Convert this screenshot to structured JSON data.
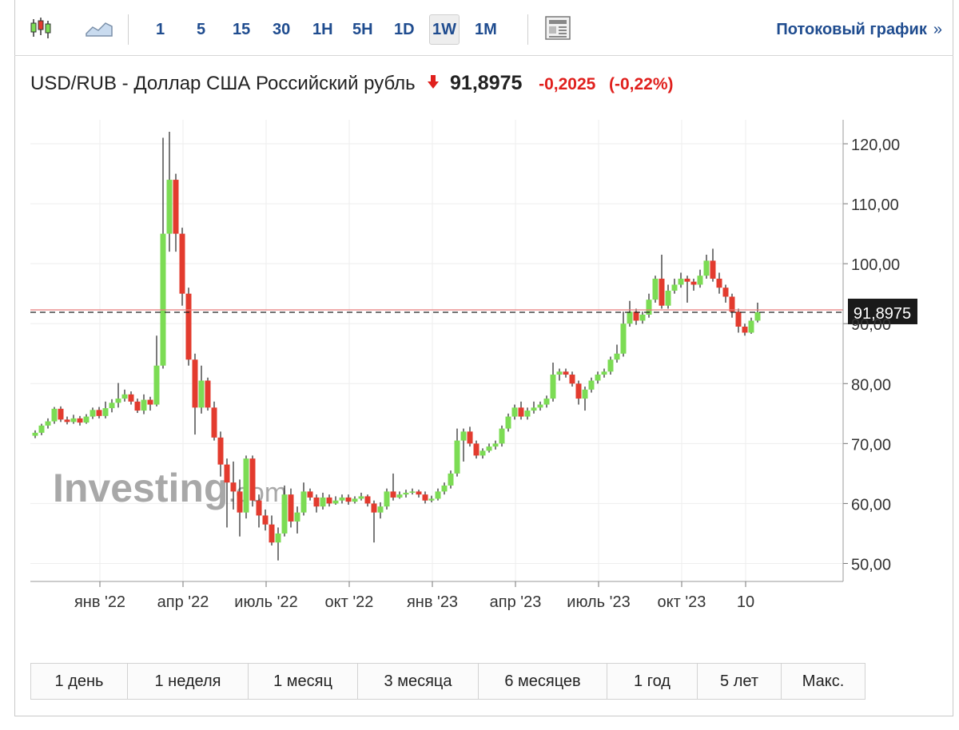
{
  "toolbar": {
    "intervals": [
      "1",
      "5",
      "15",
      "30",
      "1H",
      "5H",
      "1D",
      "1W",
      "1M"
    ],
    "active_interval": "1W",
    "stream_label": "Потоковый график",
    "stream_arrow": "»"
  },
  "header": {
    "title": "USD/RUB - Доллар США Российский рубль",
    "price": "91,8975",
    "change": "-0,2025",
    "change_pct": "(-0,22%)"
  },
  "colors": {
    "up": "#7cdc54",
    "down": "#e33b2e",
    "accent": "#1f4c8f",
    "negative_text": "#e0201d"
  },
  "watermark": {
    "text_main": "Investing",
    "text_suffix": ".com"
  },
  "periods": [
    "1 день",
    "1 неделя",
    "1 месяц",
    "3 месяца",
    "6 месяцев",
    "1 год",
    "5 лет",
    "Макс."
  ],
  "chart_data": {
    "type": "candlestick",
    "y_ticks": [
      "120,00",
      "110,00",
      "100,00",
      "90,00",
      "80,00",
      "70,00",
      "60,00",
      "50,00"
    ],
    "ylim": [
      47,
      124
    ],
    "x_ticks": [
      {
        "label": "янв '22",
        "idx": 10
      },
      {
        "label": "апр '22",
        "idx": 23
      },
      {
        "label": "июль '22",
        "idx": 36
      },
      {
        "label": "окт '22",
        "idx": 49
      },
      {
        "label": "янв '23",
        "idx": 62
      },
      {
        "label": "апр '23",
        "idx": 75
      },
      {
        "label": "июль '23",
        "idx": 88
      },
      {
        "label": "окт '23",
        "idx": 101
      },
      {
        "label": "10",
        "idx": 111
      }
    ],
    "last_price_label": "91,8975",
    "last_price": 91.8975,
    "candles": [
      [
        71.3,
        71.8,
        70.9,
        72.2
      ],
      [
        71.8,
        73.0,
        71.4,
        73.3
      ],
      [
        73.0,
        73.7,
        72.5,
        74.2
      ],
      [
        73.7,
        75.8,
        73.3,
        76.1
      ],
      [
        75.8,
        74.0,
        73.6,
        76.2
      ],
      [
        74.0,
        73.6,
        73.2,
        74.5
      ],
      [
        73.6,
        74.2,
        73.3,
        74.8
      ],
      [
        74.2,
        73.5,
        73.0,
        74.6
      ],
      [
        73.5,
        74.5,
        73.3,
        74.9
      ],
      [
        74.5,
        75.6,
        74.1,
        76.0
      ],
      [
        75.6,
        74.6,
        74.2,
        76.1
      ],
      [
        74.6,
        75.9,
        74.2,
        77.0
      ],
      [
        75.9,
        76.8,
        75.2,
        77.4
      ],
      [
        76.8,
        77.5,
        76.0,
        80.1
      ],
      [
        77.5,
        78.2,
        77.0,
        79.0
      ],
      [
        78.2,
        77.0,
        76.5,
        78.7
      ],
      [
        77.0,
        75.5,
        75.1,
        77.5
      ],
      [
        75.5,
        77.3,
        74.9,
        78.2
      ],
      [
        77.3,
        76.5,
        75.5,
        77.8
      ],
      [
        76.5,
        83.0,
        76.2,
        88.0
      ],
      [
        83.0,
        105.0,
        82.5,
        121.0
      ],
      [
        105.0,
        114.0,
        102.0,
        122.0
      ],
      [
        114.0,
        105.0,
        102.0,
        115.0
      ],
      [
        105.0,
        95.0,
        93.0,
        106.0
      ],
      [
        95.0,
        84.0,
        83.0,
        96.0
      ],
      [
        84.0,
        76.0,
        71.5,
        85.0
      ],
      [
        76.0,
        80.5,
        75.0,
        83.0
      ],
      [
        80.5,
        76.0,
        75.5,
        81.0
      ],
      [
        76.0,
        71.0,
        70.5,
        77.0
      ],
      [
        71.0,
        66.5,
        64.5,
        72.0
      ],
      [
        66.5,
        63.5,
        56.0,
        67.5
      ],
      [
        63.5,
        62.0,
        59.0,
        67.0
      ],
      [
        62.0,
        58.5,
        54.5,
        64.0
      ],
      [
        58.5,
        67.5,
        57.5,
        68.0
      ],
      [
        67.5,
        60.5,
        59.5,
        68.0
      ],
      [
        60.5,
        58.0,
        56.0,
        61.5
      ],
      [
        58.0,
        56.5,
        55.5,
        59.0
      ],
      [
        56.5,
        53.5,
        53.0,
        58.0
      ],
      [
        53.5,
        55.0,
        50.5,
        56.0
      ],
      [
        55.0,
        61.5,
        54.5,
        63.0
      ],
      [
        61.5,
        57.0,
        56.0,
        62.5
      ],
      [
        57.0,
        58.5,
        55.0,
        59.5
      ],
      [
        58.5,
        62.0,
        58.0,
        63.5
      ],
      [
        62.0,
        61.0,
        60.5,
        62.5
      ],
      [
        61.0,
        59.5,
        58.5,
        61.5
      ],
      [
        59.5,
        61.0,
        59.0,
        61.8
      ],
      [
        61.0,
        60.0,
        59.5,
        61.5
      ],
      [
        60.0,
        60.5,
        59.8,
        61.2
      ],
      [
        60.5,
        61.0,
        60.0,
        61.5
      ],
      [
        61.0,
        60.3,
        59.8,
        61.5
      ],
      [
        60.3,
        60.8,
        60.0,
        61.2
      ],
      [
        60.8,
        61.2,
        60.5,
        61.8
      ],
      [
        61.2,
        60.0,
        59.5,
        61.5
      ],
      [
        60.0,
        58.5,
        53.5,
        60.5
      ],
      [
        58.5,
        59.5,
        57.5,
        60.2
      ],
      [
        59.5,
        62.0,
        59.0,
        62.5
      ],
      [
        62.0,
        61.0,
        60.5,
        65.0
      ],
      [
        61.0,
        61.5,
        60.8,
        62.0
      ],
      [
        61.5,
        61.8,
        61.0,
        62.3
      ],
      [
        61.8,
        62.0,
        61.5,
        62.5
      ],
      [
        62.0,
        61.5,
        61.0,
        62.3
      ],
      [
        61.5,
        60.5,
        60.0,
        62.0
      ],
      [
        60.5,
        60.8,
        60.2,
        61.3
      ],
      [
        60.8,
        62.0,
        60.5,
        62.5
      ],
      [
        62.0,
        63.0,
        61.5,
        63.5
      ],
      [
        63.0,
        65.0,
        62.5,
        65.5
      ],
      [
        65.0,
        70.5,
        64.5,
        72.5
      ],
      [
        70.5,
        72.0,
        67.0,
        72.5
      ],
      [
        72.0,
        70.0,
        69.5,
        72.8
      ],
      [
        70.0,
        68.0,
        67.5,
        70.5
      ],
      [
        68.0,
        68.8,
        67.5,
        69.2
      ],
      [
        68.8,
        69.5,
        68.5,
        70.0
      ],
      [
        69.5,
        70.0,
        69.0,
        70.5
      ],
      [
        70.0,
        72.5,
        69.5,
        73.0
      ],
      [
        72.5,
        74.5,
        72.0,
        75.0
      ],
      [
        74.5,
        76.0,
        74.0,
        76.5
      ],
      [
        76.0,
        74.5,
        74.0,
        77.0
      ],
      [
        74.5,
        75.5,
        74.0,
        76.0
      ],
      [
        75.5,
        76.0,
        75.0,
        77.0
      ],
      [
        76.0,
        76.5,
        75.5,
        77.0
      ],
      [
        76.5,
        77.5,
        76.0,
        78.0
      ],
      [
        77.5,
        81.5,
        77.0,
        83.5
      ],
      [
        81.5,
        82.0,
        80.5,
        82.5
      ],
      [
        82.0,
        81.5,
        81.0,
        82.5
      ],
      [
        81.5,
        80.0,
        79.5,
        82.0
      ],
      [
        80.0,
        77.5,
        76.5,
        80.5
      ],
      [
        77.5,
        79.0,
        75.5,
        79.5
      ],
      [
        79.0,
        80.5,
        78.5,
        81.0
      ],
      [
        80.5,
        81.5,
        80.0,
        82.0
      ],
      [
        81.5,
        82.0,
        81.0,
        82.5
      ],
      [
        82.0,
        84.0,
        81.5,
        84.5
      ],
      [
        84.0,
        85.0,
        83.5,
        86.5
      ],
      [
        85.0,
        90.0,
        84.5,
        92.0
      ],
      [
        90.0,
        92.0,
        89.5,
        93.8
      ],
      [
        92.0,
        90.5,
        89.8,
        92.5
      ],
      [
        90.5,
        91.5,
        90.0,
        92.0
      ],
      [
        91.5,
        94.0,
        91.0,
        95.0
      ],
      [
        94.0,
        97.5,
        93.5,
        98.0
      ],
      [
        97.5,
        93.0,
        92.5,
        101.5
      ],
      [
        93.0,
        95.5,
        92.5,
        96.5
      ],
      [
        95.5,
        96.5,
        95.0,
        97.5
      ],
      [
        96.5,
        97.5,
        96.0,
        98.5
      ],
      [
        97.5,
        97.0,
        93.5,
        98.0
      ],
      [
        97.0,
        96.5,
        95.5,
        97.5
      ],
      [
        96.5,
        98.0,
        96.0,
        99.0
      ],
      [
        98.0,
        100.5,
        97.5,
        101.5
      ],
      [
        100.5,
        97.5,
        97.0,
        102.5
      ],
      [
        97.5,
        96.0,
        95.0,
        98.5
      ],
      [
        96.0,
        94.5,
        93.5,
        96.5
      ],
      [
        94.5,
        92.0,
        91.0,
        95.0
      ],
      [
        92.0,
        89.5,
        88.5,
        92.5
      ],
      [
        89.5,
        88.5,
        88.0,
        90.0
      ],
      [
        88.5,
        90.5,
        88.3,
        91.0
      ],
      [
        90.5,
        91.9,
        90.2,
        93.5
      ]
    ]
  }
}
